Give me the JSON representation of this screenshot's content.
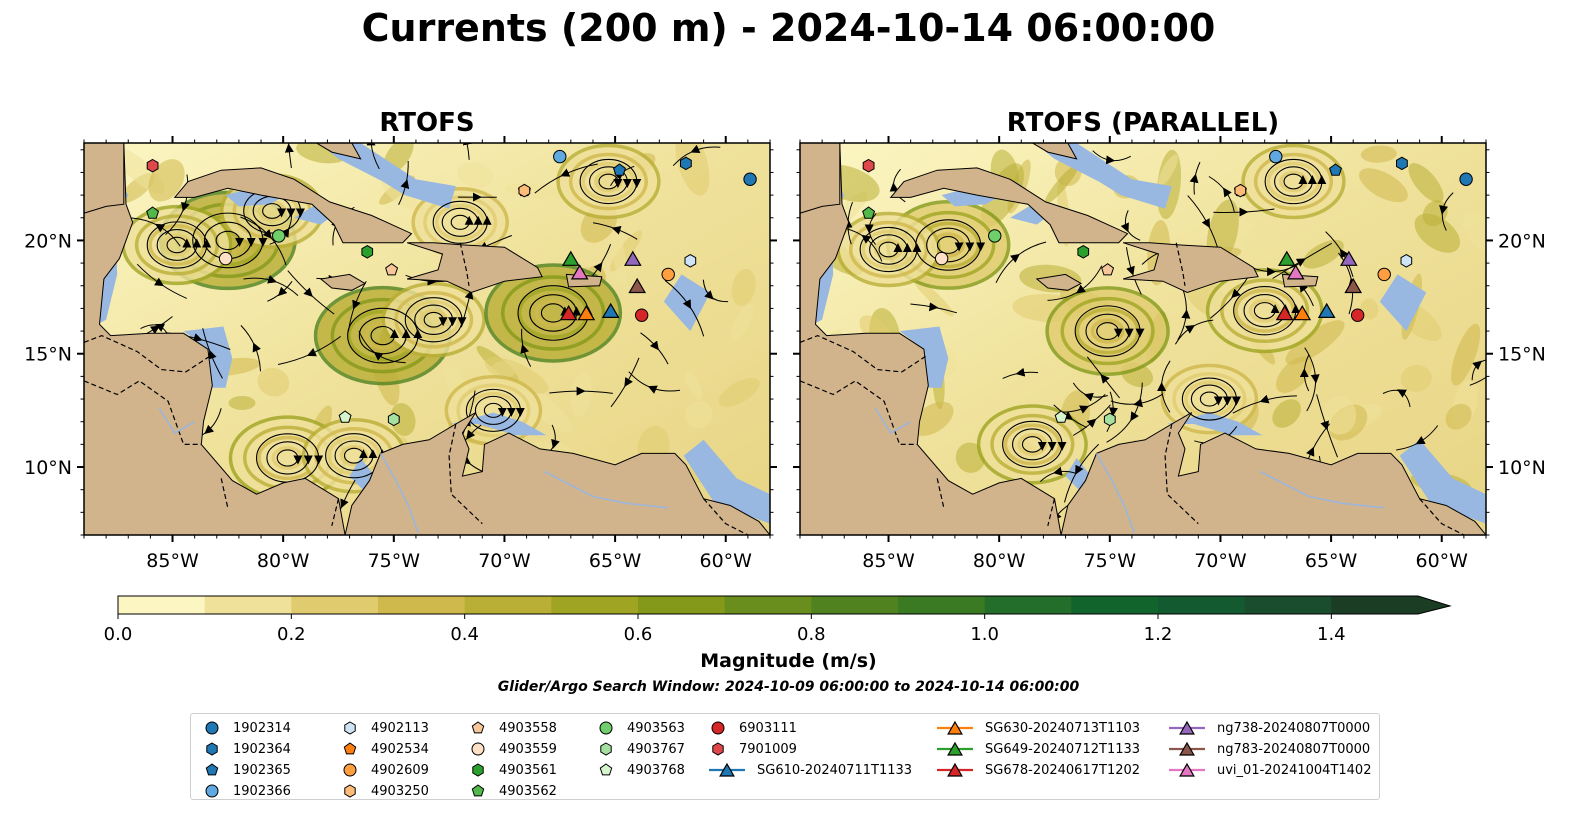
{
  "title": "Currents (200 m) - 2024-10-14 06:00:00",
  "panels": [
    "RTOFS",
    "RTOFS (PARALLEL)"
  ],
  "colorbar": {
    "label": "Magnitude (m/s)",
    "min": 0.0,
    "max": 1.5,
    "step": 0.1,
    "extend": "max",
    "tick_values": [
      0.0,
      0.2,
      0.4,
      0.6,
      0.8,
      1.0,
      1.2,
      1.4
    ],
    "tick_labels": [
      "0.0",
      "0.2",
      "0.4",
      "0.6",
      "0.8",
      "1.0",
      "1.2",
      "1.4"
    ],
    "colors": [
      "#fcf6c3",
      "#efe19a",
      "#e0cc6f",
      "#cfb84c",
      "#b9ae36",
      "#9fa522",
      "#84991a",
      "#6a8e1d",
      "#50821f",
      "#3a7a22",
      "#226e2a",
      "#12642d",
      "#145a30",
      "#1a4d2d",
      "#1b3d24"
    ]
  },
  "search_window": "Glider/Argo Search Window: 2024-10-09 06:00:00 to 2024-10-14 06:00:00",
  "colors": {
    "land": "#d2b48c",
    "shallow_water": "#98b8e2",
    "marker_edge": "#000000"
  },
  "chart_data": {
    "type": "map",
    "lon_range": [
      -89,
      -58
    ],
    "lat_range": [
      7,
      24.3
    ],
    "lon_ticks": [
      -85,
      -80,
      -75,
      -70,
      -65,
      -60
    ],
    "lon_tick_labels": [
      "85°W",
      "80°W",
      "75°W",
      "70°W",
      "65°W",
      "60°W"
    ],
    "lat_ticks": [
      10,
      15,
      20
    ],
    "lat_tick_labels": [
      "10°N",
      "15°N",
      "20°N"
    ],
    "argo_floats": [
      {
        "id": "1902314",
        "lon": -58.9,
        "lat": 22.7,
        "color": "#1f77b4",
        "marker": "circle"
      },
      {
        "id": "1902364",
        "lon": -61.8,
        "lat": 23.4,
        "color": "#1f77b4",
        "marker": "hexagon"
      },
      {
        "id": "1902365",
        "lon": -64.8,
        "lat": 23.1,
        "color": "#1f77b4",
        "marker": "pentagon"
      },
      {
        "id": "1902366",
        "lon": -67.5,
        "lat": 23.7,
        "color": "#5fa8e0",
        "marker": "circle"
      },
      {
        "id": "4902113",
        "lon": -61.6,
        "lat": 19.1,
        "color": "#cfe3f7",
        "marker": "hexagon"
      },
      {
        "id": "4902534",
        "lon": -69.1,
        "lat": 22.2,
        "color": "#ff7f0e",
        "marker": "pentagon"
      },
      {
        "id": "4902609",
        "lon": -62.6,
        "lat": 18.5,
        "color": "#ff9f40",
        "marker": "circle"
      },
      {
        "id": "4903250",
        "lon": -69.1,
        "lat": 22.2,
        "color": "#ffbb78",
        "marker": "hexagon"
      },
      {
        "id": "4903558",
        "lon": -75.1,
        "lat": 18.7,
        "color": "#f7c79a",
        "marker": "pentagon"
      },
      {
        "id": "4903559",
        "lon": -82.6,
        "lat": 19.2,
        "color": "#fde0c5",
        "marker": "circle"
      },
      {
        "id": "4903561",
        "lon": -76.2,
        "lat": 19.5,
        "color": "#2ca02c",
        "marker": "hexagon"
      },
      {
        "id": "4903562",
        "lon": -85.9,
        "lat": 21.2,
        "color": "#52b84a",
        "marker": "pentagon"
      },
      {
        "id": "4903563",
        "lon": -80.2,
        "lat": 20.2,
        "color": "#6fcf6a",
        "marker": "circle"
      },
      {
        "id": "4903767",
        "lon": -75.0,
        "lat": 12.1,
        "color": "#a6e0a0",
        "marker": "hexagon"
      },
      {
        "id": "4903768",
        "lon": -77.2,
        "lat": 12.2,
        "color": "#d6f5cf",
        "marker": "pentagon"
      },
      {
        "id": "6903111",
        "lon": -63.8,
        "lat": 16.7,
        "color": "#d62728",
        "marker": "circle"
      },
      {
        "id": "7901009",
        "lon": -85.9,
        "lat": 23.3,
        "color": "#e0474a",
        "marker": "hexagon"
      }
    ],
    "gliders": [
      {
        "id": "SG610-20240711T1133",
        "lon": -65.2,
        "lat": 16.9,
        "color": "#1f77b4"
      },
      {
        "id": "SG630-20240713T1103",
        "lon": -66.3,
        "lat": 16.8,
        "color": "#ff7f0e"
      },
      {
        "id": "SG649-20240712T1133",
        "lon": -67.0,
        "lat": 19.2,
        "color": "#2ca02c"
      },
      {
        "id": "SG678-20240617T1202",
        "lon": -67.1,
        "lat": 16.8,
        "color": "#d62728"
      },
      {
        "id": "ng738-20240807T0000",
        "lon": -64.2,
        "lat": 19.2,
        "color": "#9467bd"
      },
      {
        "id": "ng783-20240807T0000",
        "lon": -64.0,
        "lat": 18.0,
        "color": "#8c564b"
      },
      {
        "id": "uvi_01-20241004T1402",
        "lon": -66.6,
        "lat": 18.6,
        "color": "#e377c2"
      }
    ],
    "eddies": {
      "RTOFS": [
        [
          -82.5,
          20.0,
          1.0
        ],
        [
          -84.8,
          19.8,
          0.6
        ],
        [
          -80.5,
          21.3,
          0.5
        ],
        [
          -75.5,
          15.8,
          1.0
        ],
        [
          -73.2,
          16.5,
          0.5
        ],
        [
          -67.8,
          16.8,
          1.0
        ],
        [
          -79.8,
          10.4,
          0.7
        ],
        [
          -76.8,
          10.5,
          0.5
        ],
        [
          -70.5,
          12.5,
          0.4
        ],
        [
          -72.0,
          20.8,
          0.4
        ],
        [
          -65.3,
          22.6,
          0.5
        ]
      ],
      "RTOFS (PARALLEL)": [
        [
          -82.3,
          19.8,
          0.8
        ],
        [
          -85.0,
          19.6,
          0.5
        ],
        [
          -75.1,
          16.0,
          0.8
        ],
        [
          -68.0,
          16.9,
          0.7
        ],
        [
          -78.5,
          11.0,
          0.6
        ],
        [
          -66.7,
          22.6,
          0.5
        ],
        [
          -70.5,
          13.0,
          0.4
        ]
      ]
    }
  },
  "legend_columns": [
    [
      "1902314",
      "1902364",
      "1902365",
      "1902366"
    ],
    [
      "4902113",
      "4902534",
      "4902609",
      "4903250"
    ],
    [
      "4903558",
      "4903559",
      "4903561",
      "4903562"
    ],
    [
      "4903563",
      "4903767",
      "4903768"
    ],
    [
      "6903111",
      "7901009",
      "SG610-20240711T1133"
    ],
    [
      "SG630-20240713T1103",
      "SG649-20240712T1133",
      "SG678-20240617T1202"
    ],
    [
      "ng738-20240807T0000",
      "ng783-20240807T0000",
      "uvi_01-20241004T1402"
    ]
  ]
}
